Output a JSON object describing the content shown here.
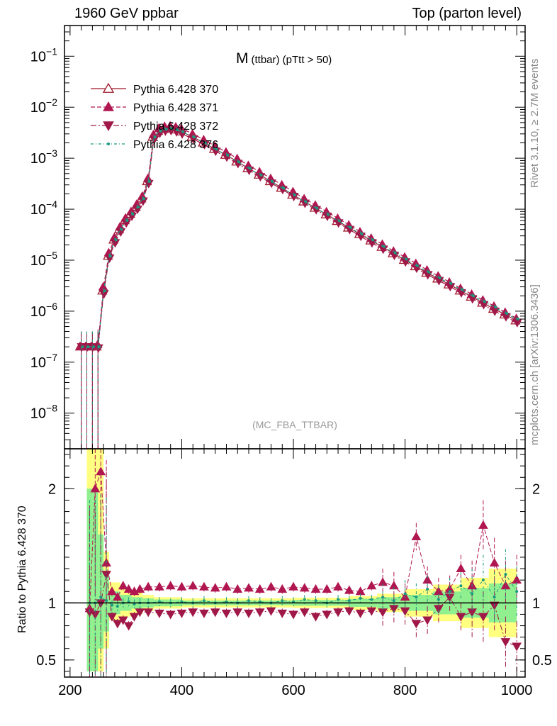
{
  "header": {
    "left": "1960 GeV ppbar",
    "right": "Top (parton level)"
  },
  "side_labels": {
    "rivet": "Rivet 3.1.10, ≥ 2.7M events",
    "mcplots": "mcplots.cern.ch [arXiv:1306.3436]"
  },
  "chart_data": [
    {
      "type": "line",
      "panel": "main",
      "title_main": "M",
      "title_sub": "(ttbar) (pTtt > 50)",
      "watermark": "(MC_FBA_TTBAR)",
      "xlabel": "",
      "ylabel": "",
      "xlim": [
        190,
        1015
      ],
      "ylim": [
        2e-09,
        0.4
      ],
      "yscale": "log",
      "xticks": [
        200,
        400,
        600,
        800,
        1000
      ],
      "xticklabels": [
        "200",
        "400",
        "600",
        "800",
        "1000"
      ],
      "yticks": [
        1e-08,
        1e-07,
        1e-06,
        1e-05,
        0.0001,
        0.001,
        0.01,
        0.1
      ],
      "yticklabels": [
        "10",
        "10",
        "10",
        "10",
        "10",
        "10",
        "10",
        "10"
      ],
      "ytickexp": [
        "−8",
        "−7",
        "−6",
        "−5",
        "−4",
        "−3",
        "−2",
        "−1"
      ],
      "legend_position": "top-left",
      "x": [
        220,
        230,
        240,
        250,
        260,
        270,
        280,
        290,
        300,
        310,
        320,
        330,
        340,
        350,
        360,
        370,
        380,
        390,
        400,
        420,
        440,
        460,
        480,
        500,
        520,
        540,
        560,
        580,
        600,
        620,
        640,
        660,
        680,
        700,
        720,
        740,
        760,
        780,
        800,
        820,
        840,
        860,
        880,
        900,
        920,
        940,
        960,
        980,
        1000
      ],
      "series": [
        {
          "name": "Pythia 6.428 370",
          "color": "#a0182a",
          "dash": "",
          "marker": "triangle-up-open",
          "values": [
            2e-07,
            2e-07,
            2e-07,
            2e-07,
            2.5e-06,
            1.2e-05,
            2.5e-05,
            4e-05,
            6e-05,
            8e-05,
            0.00011,
            0.00016,
            0.00035,
            0.0026,
            0.0034,
            0.0037,
            0.0038,
            0.0036,
            0.0033,
            0.0026,
            0.002,
            0.0015,
            0.00115,
            0.00085,
            0.00063,
            0.00047,
            0.00035,
            0.00026,
            0.00019,
            0.00014,
            0.000105,
            7.8e-05,
            5.8e-05,
            4.3e-05,
            3.2e-05,
            2.4e-05,
            1.8e-05,
            1.35e-05,
            1e-05,
            7.5e-06,
            5.6e-06,
            4.3e-06,
            3.3e-06,
            2.5e-06,
            1.9e-06,
            1.45e-06,
            1.1e-06,
            8.5e-07,
            6.5e-07
          ]
        },
        {
          "name": "Pythia 6.428 371",
          "color": "#b01650",
          "dash": "6,3",
          "marker": "triangle-up",
          "values": [
            2e-07,
            2e-07,
            2e-07,
            2.2e-07,
            3e-06,
            1.4e-05,
            2.8e-05,
            4.5e-05,
            6.7e-05,
            9e-05,
            0.000125,
            0.00018,
            0.0004,
            0.0029,
            0.0039,
            0.0042,
            0.0043,
            0.0041,
            0.0038,
            0.003,
            0.0023,
            0.00172,
            0.00132,
            0.00098,
            0.00072,
            0.00054,
            0.0004,
            0.0003,
            0.00022,
            0.00016,
            0.00012,
            8.9e-05,
            6.6e-05,
            4.9e-05,
            3.6e-05,
            2.7e-05,
            2.05e-05,
            1.5e-05,
            1.15e-05,
            8.6e-06,
            6.4e-06,
            4.9e-06,
            3.7e-06,
            2.8e-06,
            2.15e-06,
            1.65e-06,
            1.25e-06,
            9.5e-07,
            7.2e-07
          ]
        },
        {
          "name": "Pythia 6.428 372",
          "color": "#a01848",
          "dash": "8,3,2,3",
          "marker": "triangle-down",
          "values": [
            2e-07,
            2e-07,
            2e-07,
            1.9e-07,
            2.2e-06,
            1.1e-05,
            2.2e-05,
            3.6e-05,
            5.4e-05,
            7.3e-05,
            0.0001,
            0.000145,
            0.00032,
            0.00235,
            0.0031,
            0.0034,
            0.0035,
            0.0033,
            0.003,
            0.0024,
            0.00185,
            0.00138,
            0.00106,
            0.00079,
            0.00058,
            0.000435,
            0.000325,
            0.000245,
            0.000178,
            0.000131,
            9.8e-05,
            7.3e-05,
            5.4e-05,
            4e-05,
            2.95e-05,
            2.2e-05,
            1.65e-05,
            1.25e-05,
            9.3e-06,
            7e-06,
            5.2e-06,
            4e-06,
            3.05e-06,
            2.3e-06,
            1.75e-06,
            1.35e-06,
            1e-06,
            7.8e-07,
            6e-07
          ]
        },
        {
          "name": "Pythia 6.428 376",
          "color": "#1a9a80",
          "dash": "4,3,1,3",
          "marker": "dot",
          "values": [
            2e-07,
            2e-07,
            2e-07,
            2e-07,
            2.5e-06,
            1.2e-05,
            2.5e-05,
            4e-05,
            6e-05,
            8e-05,
            0.00011,
            0.00016,
            0.00035,
            0.0026,
            0.0034,
            0.0037,
            0.0038,
            0.0036,
            0.0033,
            0.0026,
            0.002,
            0.0015,
            0.00115,
            0.00085,
            0.00063,
            0.00047,
            0.00035,
            0.00026,
            0.00019,
            0.00014,
            0.000105,
            7.9e-05,
            5.9e-05,
            4.4e-05,
            3.3e-05,
            2.5e-05,
            1.85e-05,
            1.4e-05,
            1.05e-05,
            7.8e-06,
            5.9e-06,
            4.5e-06,
            3.5e-06,
            2.65e-06,
            2e-06,
            1.55e-06,
            1.2e-06,
            9e-07,
            7e-07
          ]
        }
      ]
    },
    {
      "type": "line",
      "panel": "ratio",
      "ylabel": "Ratio to Pythia 6.428 370",
      "xlim": [
        190,
        1015
      ],
      "ylim": [
        0.35,
        2.35
      ],
      "yticks": [
        0.5,
        1,
        2
      ],
      "yticklabels": [
        "0.5",
        "1",
        "2"
      ],
      "xticks": [
        200,
        400,
        600,
        800,
        1000
      ],
      "xticklabels": [
        "200",
        "400",
        "600",
        "800",
        "1000"
      ],
      "x": [
        235,
        245,
        255,
        265,
        275,
        285,
        295,
        305,
        315,
        325,
        340,
        360,
        380,
        400,
        420,
        440,
        460,
        480,
        500,
        520,
        540,
        560,
        580,
        600,
        620,
        640,
        660,
        680,
        700,
        720,
        740,
        760,
        780,
        800,
        820,
        840,
        860,
        880,
        900,
        920,
        940,
        960,
        980,
        1000
      ],
      "bands": {
        "x_edges": [
          230,
          240,
          250,
          260,
          270,
          290,
          310,
          330,
          350,
          400,
          500,
          600,
          700,
          750,
          800,
          850,
          900,
          950,
          1000
        ],
        "yellow_lo": [
          0.4,
          0.4,
          0.4,
          0.6,
          0.85,
          0.88,
          0.9,
          0.93,
          0.95,
          0.96,
          0.96,
          0.955,
          0.94,
          0.92,
          0.88,
          0.84,
          0.78,
          0.7,
          0.66
        ],
        "yellow_hi": [
          2.4,
          2.4,
          2.4,
          1.45,
          1.18,
          1.12,
          1.1,
          1.07,
          1.05,
          1.04,
          1.04,
          1.045,
          1.06,
          1.08,
          1.12,
          1.16,
          1.22,
          1.3,
          1.42
        ],
        "green_lo": [
          0.4,
          0.4,
          0.6,
          0.75,
          0.9,
          0.93,
          0.95,
          0.96,
          0.97,
          0.98,
          0.98,
          0.975,
          0.965,
          0.95,
          0.93,
          0.9,
          0.87,
          0.83,
          0.8
        ],
        "green_hi": [
          2.0,
          2.0,
          1.6,
          1.25,
          1.1,
          1.07,
          1.05,
          1.04,
          1.03,
          1.02,
          1.02,
          1.025,
          1.035,
          1.05,
          1.07,
          1.1,
          1.13,
          1.17,
          1.22
        ]
      },
      "series": [
        {
          "name": "Pythia 6.428 371",
          "color": "#b01650",
          "dash": "6,3",
          "marker": "triangle-up",
          "values": [
            0.95,
            2.0,
            2.15,
            1.35,
            1.1,
            1.05,
            1.15,
            1.12,
            1.1,
            1.12,
            1.14,
            1.14,
            1.15,
            1.14,
            1.15,
            1.14,
            1.13,
            1.14,
            1.12,
            1.13,
            1.12,
            1.14,
            1.12,
            1.14,
            1.13,
            1.12,
            1.12,
            1.14,
            1.11,
            1.1,
            1.15,
            1.18,
            1.15,
            1.05,
            1.58,
            1.2,
            1.1,
            1.12,
            1.3,
            1.15,
            1.68,
            1.35,
            1.15,
            1.2
          ]
        },
        {
          "name": "Pythia 6.428 372",
          "color": "#a01848",
          "dash": "8,3,2,3",
          "marker": "triangle-down",
          "values": [
            0.92,
            0.9,
            1.0,
            1.25,
            0.88,
            0.82,
            0.85,
            0.8,
            0.88,
            0.92,
            0.92,
            0.91,
            0.9,
            0.91,
            0.92,
            0.91,
            0.92,
            0.91,
            0.92,
            0.91,
            0.92,
            0.93,
            0.91,
            0.9,
            0.92,
            0.88,
            0.9,
            0.92,
            0.93,
            0.91,
            0.93,
            0.92,
            0.95,
            0.93,
            0.82,
            0.85,
            0.95,
            1.05,
            0.88,
            0.92,
            0.88,
            0.98,
            0.66,
            0.62
          ]
        },
        {
          "name": "Pythia 6.428 376",
          "color": "#1a9a80",
          "dash": "4,3,1,3",
          "marker": "dot",
          "values": [
            1.0,
            1.0,
            1.05,
            1.02,
            0.98,
            0.97,
            1.0,
            1.01,
            0.99,
            1.0,
            1.0,
            1.01,
            1.0,
            1.01,
            1.0,
            1.02,
            1.0,
            1.01,
            1.0,
            1.02,
            1.01,
            1.0,
            1.02,
            1.01,
            1.03,
            1.02,
            1.0,
            1.03,
            1.02,
            1.04,
            1.03,
            1.05,
            1.02,
            1.08,
            1.05,
            1.12,
            1.03,
            1.1,
            1.15,
            1.08,
            1.2,
            1.05,
            1.25,
            1.1
          ]
        }
      ]
    }
  ]
}
